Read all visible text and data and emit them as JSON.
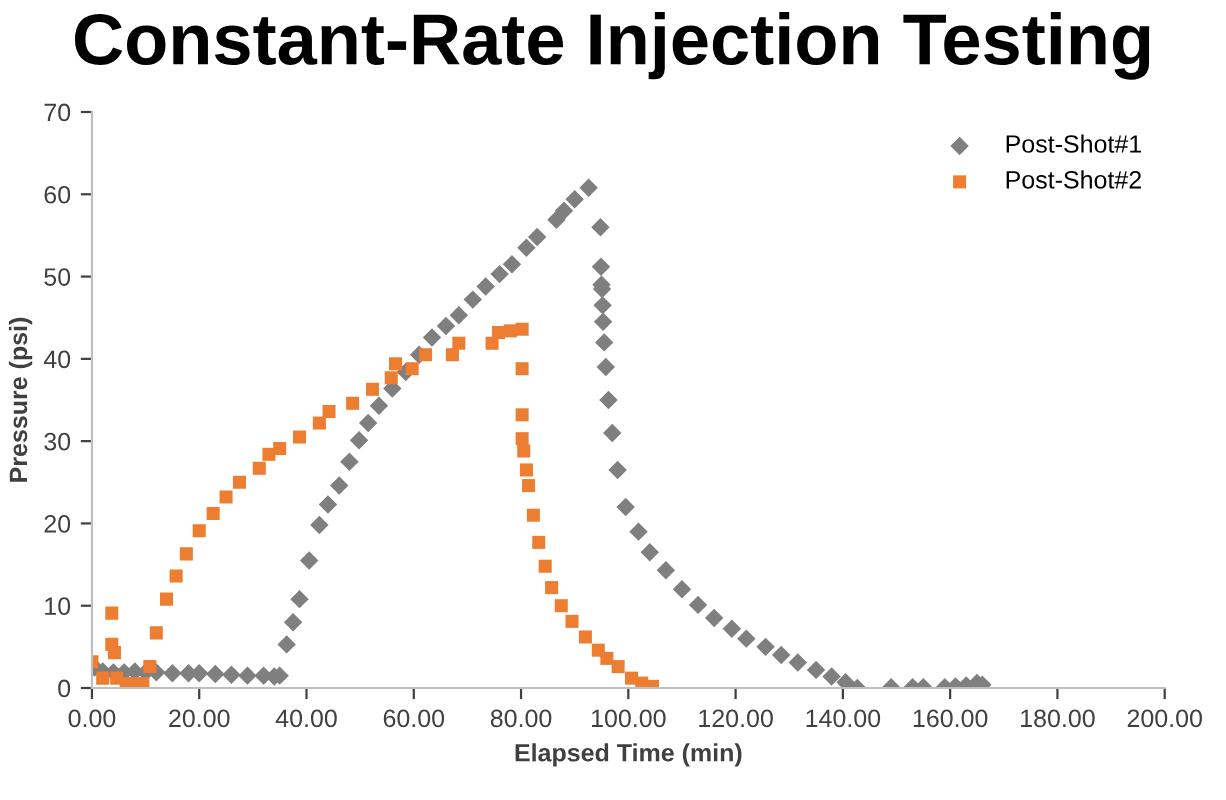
{
  "chart_data": {
    "type": "scatter",
    "title": "Constant-Rate Injection Testing",
    "xlabel": "Elapsed Time (min)",
    "ylabel": "Pressure (psi)",
    "xlim": [
      0,
      200
    ],
    "xticks": [
      {
        "value": 0,
        "label": "0.00"
      },
      {
        "value": 20,
        "label": "20.00"
      },
      {
        "value": 40,
        "label": "40.00"
      },
      {
        "value": 60,
        "label": "60.00"
      },
      {
        "value": 80,
        "label": "80.00"
      },
      {
        "value": 100,
        "label": "100.00"
      },
      {
        "value": 120,
        "label": "120.00"
      },
      {
        "value": 140,
        "label": "140.00"
      },
      {
        "value": 160,
        "label": "160.00"
      },
      {
        "value": 180,
        "label": "180.00"
      },
      {
        "value": 200,
        "label": "200.00"
      }
    ],
    "ylim": [
      0,
      70
    ],
    "yticks": [
      0,
      10,
      20,
      30,
      40,
      50,
      60,
      70
    ],
    "grid": false,
    "legend": "top right",
    "series": [
      {
        "name": "Post-Shot#1",
        "color": "#7f7f7f",
        "marker": "diamond",
        "x": [
          0.5,
          2,
          4,
          6,
          8,
          10,
          12,
          15,
          18,
          20,
          23,
          26,
          29,
          32,
          34,
          35,
          36.3,
          37.5,
          38.7,
          40.5,
          42.4,
          44,
          46.1,
          48,
          49.8,
          51.5,
          53.5,
          56,
          58.5,
          61,
          63.4,
          66,
          68.4,
          71,
          73.4,
          76,
          78.3,
          81,
          83,
          86.6,
          88,
          90,
          92.6,
          94.8,
          94.9,
          95,
          95.1,
          95.2,
          95.3,
          95.5,
          95.8,
          96.3,
          97,
          98,
          99.5,
          101.9,
          104,
          107,
          110,
          113,
          116,
          119.3,
          122,
          125.6,
          128.5,
          131.6,
          135,
          137.9,
          140.5,
          142.7,
          149,
          153,
          155,
          159,
          161,
          163,
          165,
          166
        ],
        "values": [
          2.5,
          2,
          1.9,
          1.9,
          2,
          1.9,
          1.9,
          1.8,
          1.8,
          1.8,
          1.7,
          1.6,
          1.5,
          1.5,
          1.4,
          1.5,
          5.3,
          8,
          10.8,
          15.5,
          19.8,
          22.3,
          24.6,
          27.5,
          30.1,
          32.2,
          34.3,
          36.4,
          38.4,
          40.5,
          42.6,
          44,
          45.3,
          47.2,
          48.8,
          50.3,
          51.5,
          53.5,
          54.8,
          56.9,
          58,
          59.4,
          60.8,
          56,
          51.2,
          49,
          48.5,
          46.5,
          44.5,
          42,
          39,
          35,
          31,
          26.5,
          22,
          19,
          16.5,
          14.3,
          12,
          10.1,
          8.5,
          7.2,
          6,
          5,
          4,
          3.1,
          2.2,
          1.4,
          0.7,
          0,
          0.1,
          0.1,
          0.1,
          0.1,
          0.2,
          0.3,
          0.6,
          0.4
        ]
      },
      {
        "name": "Post-Shot#2",
        "color": "#ed7d31",
        "marker": "square",
        "x": [
          0,
          2,
          3.7,
          3.7,
          4.2,
          4.6,
          6.4,
          8,
          9.5,
          10.8,
          12,
          13.9,
          15.7,
          17.6,
          20,
          22.6,
          25,
          27.5,
          31.2,
          33,
          35,
          38.7,
          42.4,
          44.2,
          48.6,
          52.3,
          55.8,
          56.6,
          59.7,
          62.2,
          67.2,
          68.4,
          74.6,
          75.8,
          78,
          80.2,
          80.2,
          80.2,
          80.2,
          80.5,
          81,
          81.4,
          82.3,
          83.3,
          84.5,
          85.7,
          87.5,
          89.5,
          92,
          94.4,
          96,
          98.1,
          100.6,
          102.5,
          104.5
        ],
        "values": [
          3.2,
          1.2,
          9.1,
          5.3,
          4.3,
          1.2,
          0.5,
          0.5,
          0.5,
          2.6,
          6.7,
          10.8,
          13.6,
          16.3,
          19.1,
          21.2,
          23.2,
          25,
          26.7,
          28.4,
          29.1,
          30.5,
          32.2,
          33.6,
          34.6,
          36.3,
          37.7,
          39.4,
          38.8,
          40.5,
          40.5,
          41.9,
          41.9,
          43.2,
          43.4,
          43.6,
          38.8,
          33.2,
          30.3,
          28.8,
          26.5,
          24.6,
          21,
          17.7,
          14.8,
          12.2,
          10,
          8.1,
          6.2,
          4.6,
          3.6,
          2.6,
          1.2,
          0.6,
          0.2
        ]
      }
    ]
  }
}
